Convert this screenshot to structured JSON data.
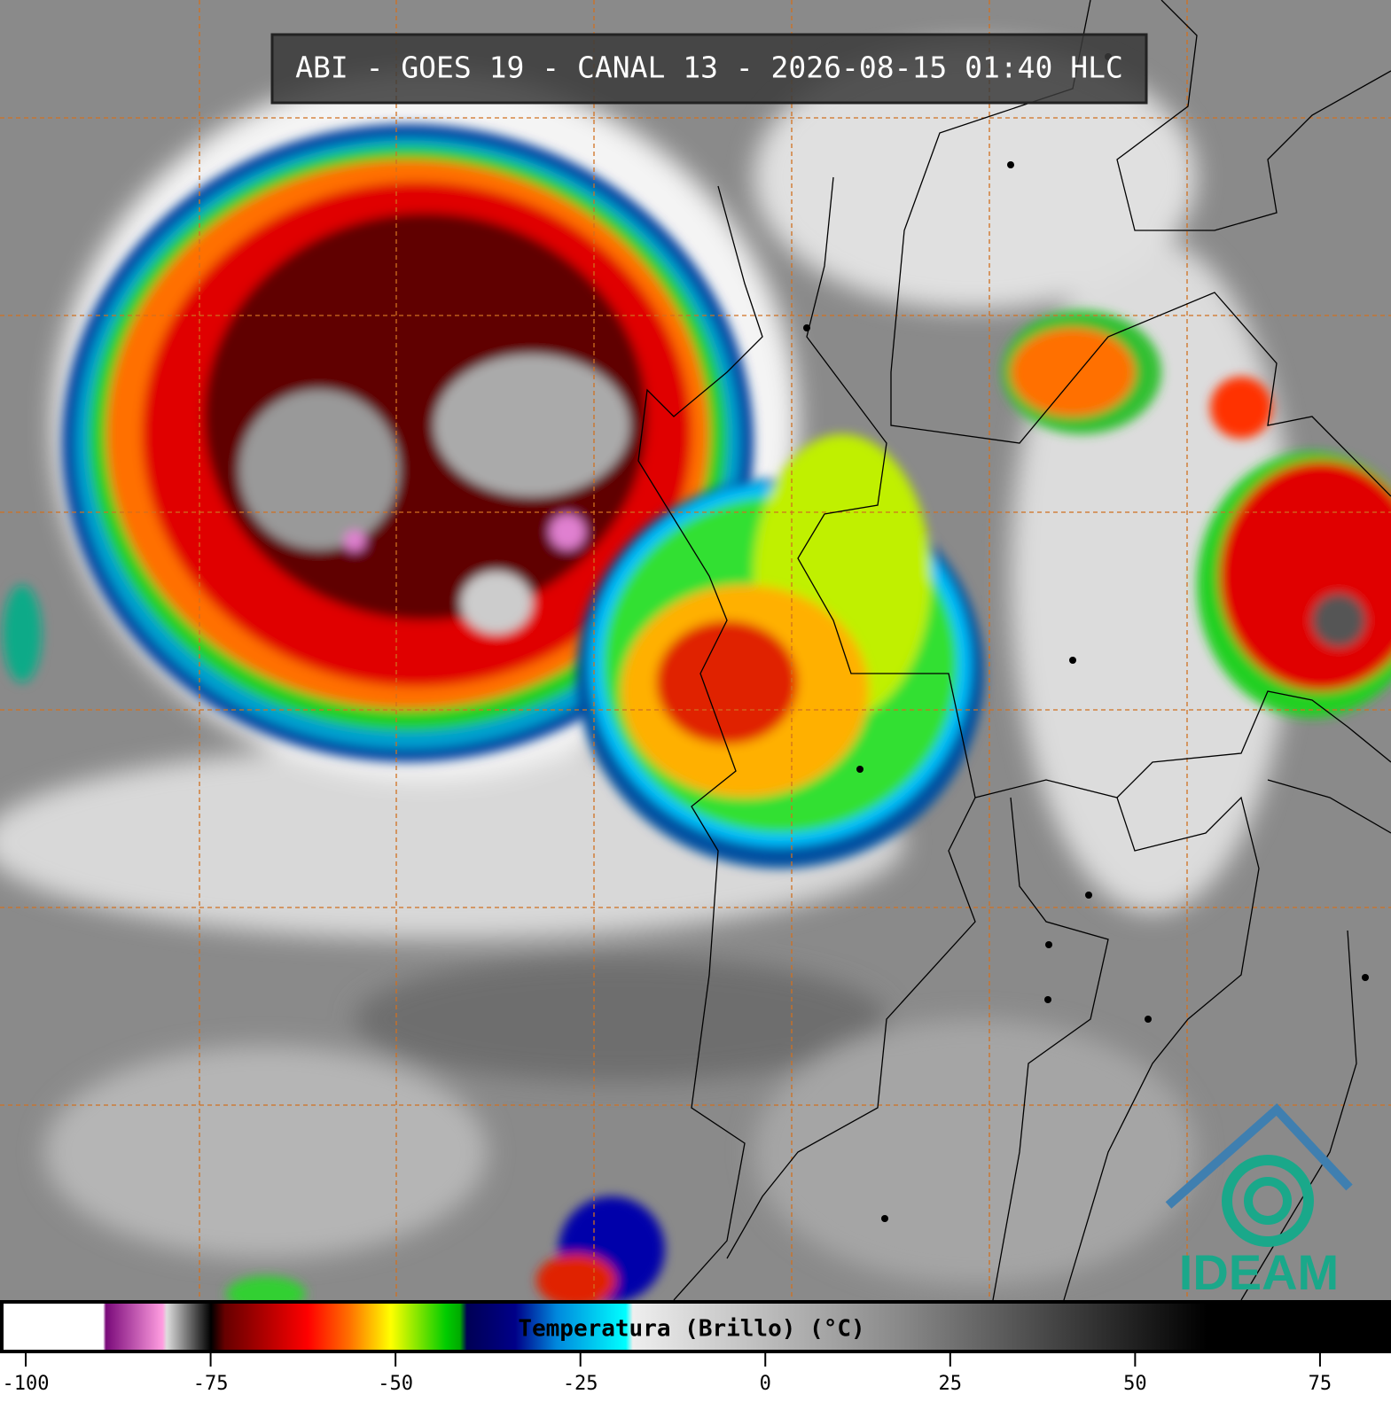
{
  "header": {
    "title": "ABI - GOES 19 - CANAL 13 - 2026-08-15 01:40 HLC"
  },
  "colorbar": {
    "label": "Temperatura (Brillo) (°C)",
    "xlim": [
      -103,
      84
    ],
    "xticks": [
      -100,
      -75,
      -50,
      -25,
      0,
      25,
      50,
      75
    ]
  },
  "logo": {
    "text": "IDEAM"
  }
}
